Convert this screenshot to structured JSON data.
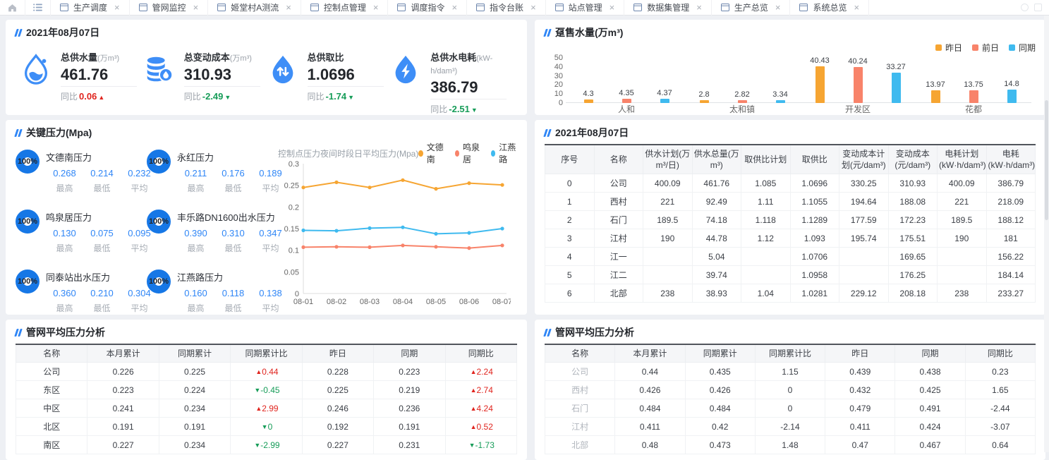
{
  "tabbar": {
    "tabs": [
      "生产调度",
      "管网监控",
      "姬堂村A测流",
      "控制点管理",
      "调度指令",
      "指令台账",
      "站点管理",
      "数据集管理",
      "生产总览",
      "系统总览"
    ],
    "icons": {
      "home": "home-icon",
      "menu": "list-icon",
      "tab": "window-icon",
      "close": "close-icon"
    }
  },
  "kpi_panel": {
    "title": "2021年08月07日",
    "yoy_label": "同比",
    "cards": [
      {
        "label": "总供水量",
        "unit": "(万m³)",
        "value": "461.76",
        "yoy": "0.06",
        "trend": "up",
        "icon": "water-drop-icon"
      },
      {
        "label": "总变动成本",
        "unit": "(万m³)",
        "value": "310.93",
        "yoy": "-2.49",
        "trend": "down",
        "icon": "cost-coins-icon"
      },
      {
        "label": "总供取比",
        "unit": "",
        "value": "1.0696",
        "yoy": "-1.74",
        "trend": "down",
        "icon": "intake-ratio-drop-icon"
      },
      {
        "label": "总供水电耗",
        "unit": "(kW-h/dam³)",
        "value": "386.79",
        "yoy": "-2.51",
        "trend": "down",
        "icon": "energy-drop-icon"
      }
    ],
    "trend_colors": {
      "up": "#e0251f",
      "down": "#169c58"
    }
  },
  "pressure_panel": {
    "title": "关键压力(Mpa)",
    "percent_all": "100%",
    "value_labels": [
      "最高",
      "最低",
      "平均"
    ],
    "ring_color": "#1677e6",
    "gauges": [
      {
        "name": "文德南压力",
        "percent": "100%",
        "values": [
          "0.268",
          "0.214",
          "0.232"
        ]
      },
      {
        "name": "永红压力",
        "percent": "100%",
        "values": [
          "0.211",
          "0.176",
          "0.189"
        ]
      },
      {
        "name": "鸣泉居压力",
        "percent": "100%",
        "values": [
          "0.130",
          "0.075",
          "0.095"
        ]
      },
      {
        "name": "丰乐路DN1600出水压力",
        "percent": "100%",
        "values": [
          "0.390",
          "0.310",
          "0.347"
        ]
      },
      {
        "name": "同泰站出水压力",
        "percent": "100%",
        "values": [
          "0.360",
          "0.210",
          "0.304"
        ]
      },
      {
        "name": "江燕路压力",
        "percent": "100%",
        "values": [
          "0.160",
          "0.118",
          "0.138"
        ]
      }
    ]
  },
  "daily_panel": {
    "title": "2021年08月07日",
    "columns": [
      "序号",
      "名称",
      "供水计划(万m³/日)",
      "供水总量(万m³)",
      "取供比计划",
      "取供比",
      "变动成本计划(元/dam³)",
      "变动成本(元/dam³)",
      "电耗计划(kW·h/dam³)",
      "电耗(kW·h/dam³)"
    ],
    "rows": [
      [
        "0",
        "公司",
        "400.09",
        "461.76",
        "1.085",
        "1.0696",
        "330.25",
        "310.93",
        "400.09",
        "386.79"
      ],
      [
        "1",
        "西村",
        "221",
        "92.49",
        "1.11",
        "1.1055",
        "194.64",
        "188.08",
        "221",
        "218.09"
      ],
      [
        "2",
        "石门",
        "189.5",
        "74.18",
        "1.118",
        "1.1289",
        "177.59",
        "172.23",
        "189.5",
        "188.12"
      ],
      [
        "3",
        "江村",
        "190",
        "44.78",
        "1.12",
        "1.093",
        "195.74",
        "175.51",
        "190",
        "181"
      ],
      [
        "4",
        "江一",
        "",
        "5.04",
        "",
        "1.0706",
        "",
        "169.65",
        "",
        "156.22"
      ],
      [
        "5",
        "江二",
        "",
        "39.74",
        "",
        "1.0958",
        "",
        "176.25",
        "",
        "184.14"
      ],
      [
        "6",
        "北部",
        "238",
        "38.93",
        "1.04",
        "1.0281",
        "229.12",
        "208.18",
        "238",
        "233.27"
      ]
    ]
  },
  "pipe_left_panel": {
    "title": "管网平均压力分析",
    "columns": [
      "名称",
      "本月累计",
      "同期累计",
      "同期累计比",
      "昨日",
      "同期",
      "同期比"
    ],
    "rows": [
      [
        "公司",
        "0.226",
        "0.225",
        {
          "v": "0.44",
          "trend": "up"
        },
        "0.228",
        "0.223",
        {
          "v": "2.24",
          "trend": "up"
        }
      ],
      [
        "东区",
        "0.223",
        "0.224",
        {
          "v": "-0.45",
          "trend": "down"
        },
        "0.225",
        "0.219",
        {
          "v": "2.74",
          "trend": "up"
        }
      ],
      [
        "中区",
        "0.241",
        "0.234",
        {
          "v": "2.99",
          "trend": "up"
        },
        "0.246",
        "0.236",
        {
          "v": "4.24",
          "trend": "up"
        }
      ],
      [
        "北区",
        "0.191",
        "0.191",
        {
          "v": "0",
          "trend": "down"
        },
        "0.192",
        "0.191",
        {
          "v": "0.52",
          "trend": "up"
        }
      ],
      [
        "南区",
        "0.227",
        "0.234",
        {
          "v": "-2.99",
          "trend": "down"
        },
        "0.227",
        "0.231",
        {
          "v": "-1.73",
          "trend": "down"
        }
      ]
    ]
  },
  "pipe_right_panel": {
    "title": "管网平均压力分析",
    "columns": [
      "名称",
      "本月累计",
      "同期累计",
      "同期累计比",
      "昨日",
      "同期",
      "同期比"
    ],
    "rows": [
      [
        "公司",
        "0.44",
        "0.435",
        "1.15",
        "0.439",
        "0.438",
        "0.23"
      ],
      [
        "西村",
        "0.426",
        "0.426",
        "0",
        "0.432",
        "0.425",
        "1.65"
      ],
      [
        "石门",
        "0.484",
        "0.484",
        "0",
        "0.479",
        "0.491",
        "-2.44"
      ],
      [
        "江村",
        "0.411",
        "0.42",
        "-2.14",
        "0.411",
        "0.424",
        "-3.07"
      ],
      [
        "北部",
        "0.48",
        "0.473",
        "1.48",
        "0.47",
        "0.467",
        "0.64"
      ]
    ]
  },
  "chart_data": [
    {
      "type": "bar",
      "title": "趸售水量(万m³)",
      "categories": [
        "人和",
        "太和镇",
        "开发区",
        "花都"
      ],
      "series": [
        {
          "name": "昨日",
          "color": "#f6a532",
          "values": [
            4.3,
            2.8,
            40.43,
            13.97
          ]
        },
        {
          "name": "前日",
          "color": "#f8836a",
          "values": [
            4.35,
            2.82,
            40.24,
            13.75
          ]
        },
        {
          "name": "同期",
          "color": "#3fbaef",
          "values": [
            4.37,
            3.34,
            33.27,
            14.8
          ]
        }
      ],
      "xlabel": "",
      "ylabel": "",
      "ylim": [
        0,
        50
      ],
      "yticks": [
        0,
        10,
        20,
        30,
        40,
        50
      ],
      "grid": false,
      "legend_position": "top-right",
      "value_labels": true
    },
    {
      "type": "line",
      "title": "控制点压力夜间时段日平均压力(Mpa)",
      "x": [
        "08-01",
        "08-02",
        "08-03",
        "08-04",
        "08-05",
        "08-06",
        "08-07"
      ],
      "series": [
        {
          "name": "文德南",
          "color": "#f6a532",
          "values": [
            0.245,
            0.257,
            0.245,
            0.262,
            0.242,
            0.255,
            0.251
          ]
        },
        {
          "name": "鸣泉居",
          "color": "#f8836a",
          "values": [
            0.107,
            0.108,
            0.107,
            0.111,
            0.108,
            0.105,
            0.111
          ]
        },
        {
          "name": "江燕路",
          "color": "#3fbaef",
          "values": [
            0.146,
            0.145,
            0.151,
            0.153,
            0.138,
            0.14,
            0.15
          ]
        }
      ],
      "xlabel": "",
      "ylabel": "",
      "ylim": [
        0,
        0.3
      ],
      "yticks": [
        0,
        0.05,
        0.1,
        0.15,
        0.2,
        0.25,
        0.3
      ],
      "grid": false,
      "legend_position": "top-right"
    }
  ]
}
